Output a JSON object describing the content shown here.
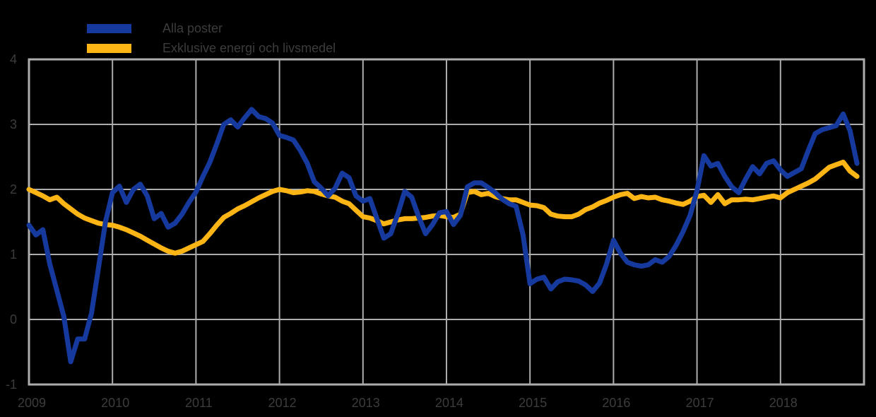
{
  "legend": {
    "items": [
      {
        "label": "Alla poster",
        "color": "#16399e"
      },
      {
        "label": "Exklusive energi och livsmedel",
        "color": "#fcb514"
      }
    ]
  },
  "colors": {
    "background": "#000000",
    "grid": "#adadad",
    "tick_text": "#3c3c3c",
    "series_blue": "#16399e",
    "series_yellow": "#fcb514"
  },
  "chart_data": {
    "type": "line",
    "title": "",
    "xlabel": "",
    "ylabel": "",
    "frequency": "monthly",
    "x_start_year": 2009,
    "x_tick_labels": [
      "2009",
      "2010",
      "2011",
      "2012",
      "2013",
      "2014",
      "2015",
      "2016",
      "2017",
      "2018"
    ],
    "y_ticks": [
      4,
      3,
      2,
      1,
      0,
      -1
    ],
    "y_tick_labels": [
      "4",
      "3",
      "2",
      "1",
      "0",
      "-1"
    ],
    "ylim": [
      -1,
      4
    ],
    "grid": true,
    "legend_position": "top-left",
    "series": [
      {
        "name": "Alla poster",
        "color": "#16399e",
        "values": [
          1.45,
          1.3,
          1.38,
          0.85,
          0.45,
          0.05,
          -0.65,
          -0.3,
          -0.3,
          0.1,
          0.8,
          1.5,
          1.95,
          2.05,
          1.8,
          2.0,
          2.08,
          1.9,
          1.55,
          1.63,
          1.42,
          1.48,
          1.62,
          1.8,
          1.96,
          2.2,
          2.42,
          2.7,
          3.0,
          3.07,
          2.96,
          3.1,
          3.23,
          3.12,
          3.09,
          3.02,
          2.83,
          2.8,
          2.76,
          2.6,
          2.4,
          2.12,
          2.02,
          1.9,
          2.02,
          2.25,
          2.18,
          1.9,
          1.82,
          1.86,
          1.55,
          1.25,
          1.32,
          1.62,
          1.97,
          1.88,
          1.58,
          1.32,
          1.46,
          1.64,
          1.66,
          1.46,
          1.6,
          2.04,
          2.1,
          2.1,
          2.03,
          1.95,
          1.85,
          1.78,
          1.74,
          1.3,
          0.55,
          0.62,
          0.65,
          0.47,
          0.58,
          0.62,
          0.61,
          0.59,
          0.53,
          0.43,
          0.56,
          0.85,
          1.22,
          1.02,
          0.88,
          0.84,
          0.82,
          0.84,
          0.92,
          0.88,
          0.97,
          1.14,
          1.35,
          1.6,
          1.98,
          2.52,
          2.36,
          2.4,
          2.2,
          2.04,
          1.95,
          2.16,
          2.35,
          2.24,
          2.4,
          2.44,
          2.3,
          2.2,
          2.26,
          2.32,
          2.6,
          2.86,
          2.92,
          2.95,
          2.98,
          3.16,
          2.9,
          2.4
        ]
      },
      {
        "name": "Exklusive energi och livsmedel",
        "color": "#fcb514",
        "values": [
          2.0,
          1.95,
          1.9,
          1.84,
          1.88,
          1.78,
          1.7,
          1.62,
          1.56,
          1.52,
          1.48,
          1.46,
          1.45,
          1.42,
          1.38,
          1.33,
          1.28,
          1.22,
          1.16,
          1.1,
          1.05,
          1.02,
          1.05,
          1.1,
          1.15,
          1.2,
          1.32,
          1.45,
          1.57,
          1.63,
          1.7,
          1.75,
          1.81,
          1.87,
          1.92,
          1.97,
          2.0,
          1.98,
          1.95,
          1.96,
          1.98,
          1.97,
          1.93,
          1.9,
          1.88,
          1.82,
          1.78,
          1.68,
          1.58,
          1.56,
          1.52,
          1.47,
          1.5,
          1.53,
          1.55,
          1.55,
          1.56,
          1.57,
          1.59,
          1.6,
          1.58,
          1.57,
          1.62,
          1.95,
          1.97,
          1.92,
          1.94,
          1.89,
          1.86,
          1.84,
          1.84,
          1.8,
          1.76,
          1.75,
          1.72,
          1.62,
          1.59,
          1.58,
          1.58,
          1.62,
          1.69,
          1.73,
          1.79,
          1.83,
          1.88,
          1.92,
          1.94,
          1.86,
          1.89,
          1.87,
          1.88,
          1.84,
          1.82,
          1.79,
          1.77,
          1.82,
          1.89,
          1.91,
          1.8,
          1.92,
          1.78,
          1.84,
          1.84,
          1.85,
          1.84,
          1.86,
          1.88,
          1.9,
          1.87,
          1.95,
          2.0,
          2.05,
          2.1,
          2.16,
          2.25,
          2.34,
          2.38,
          2.42,
          2.28,
          2.2
        ]
      }
    ]
  }
}
